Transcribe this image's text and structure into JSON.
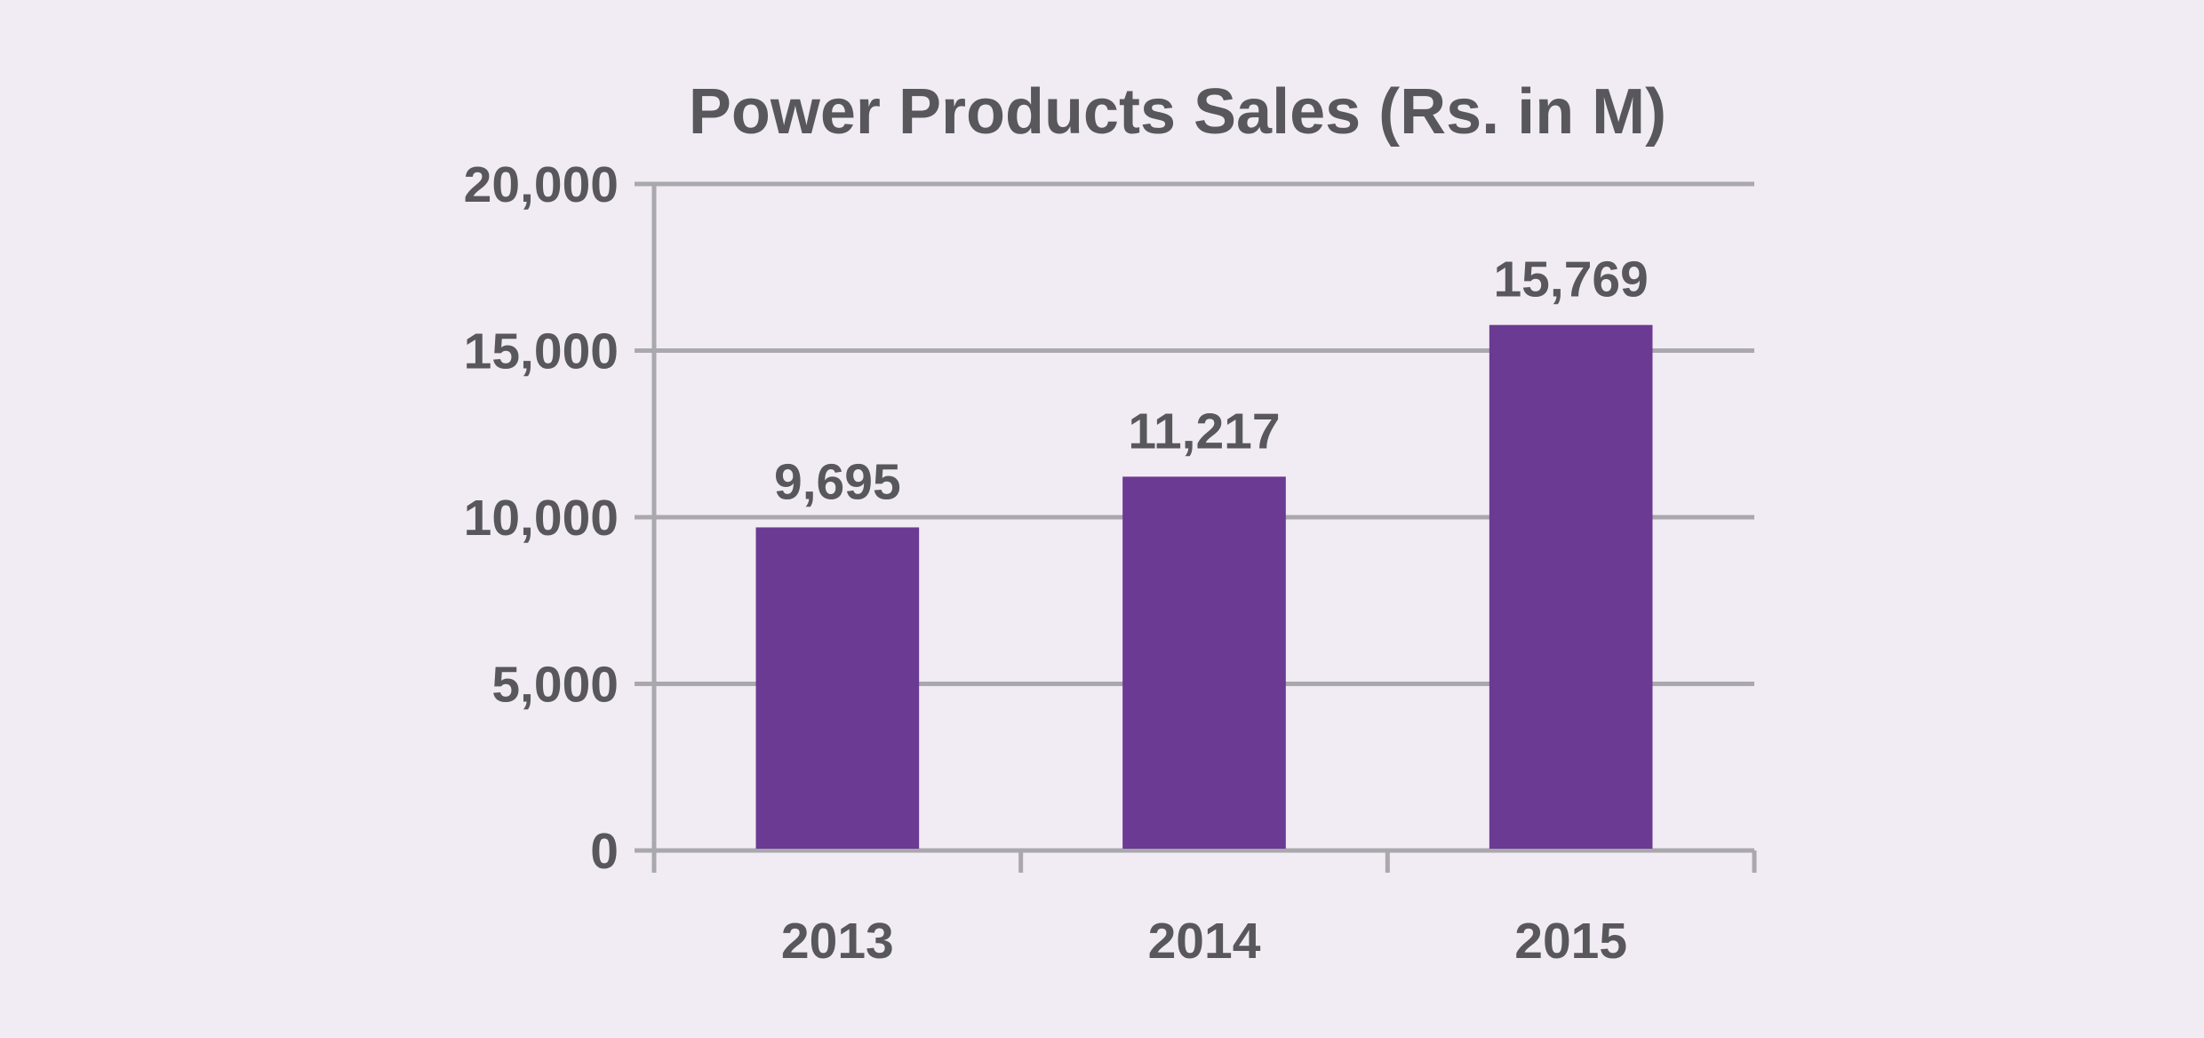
{
  "chart_data": {
    "type": "bar",
    "title": "Power Products Sales (Rs. in M)",
    "categories": [
      "2013",
      "2014",
      "2015"
    ],
    "values": [
      9695,
      11217,
      15769
    ],
    "data_labels": [
      "9,695",
      "11,217",
      "15,769"
    ],
    "xlabel": "",
    "ylabel": "",
    "ylim": [
      0,
      20000
    ],
    "yticks": [
      0,
      5000,
      10000,
      15000,
      20000
    ],
    "ytick_labels": [
      "0",
      "5,000",
      "10,000",
      "15,000",
      "20,000"
    ],
    "grid": true,
    "legend": "none",
    "colors": {
      "bar": "#6b3a93",
      "grid": "#a9a8ad",
      "text": "#58575c",
      "background": "#f1ecf3"
    }
  }
}
